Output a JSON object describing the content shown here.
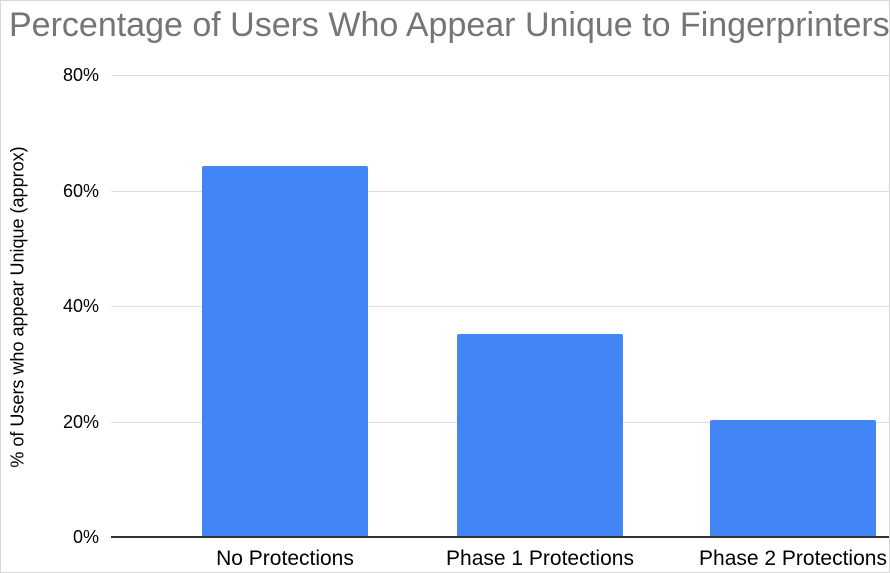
{
  "chart_data": {
    "type": "bar",
    "title": "Percentage of Users Who Appear Unique to Fingerprinters",
    "categories": [
      "No Protections",
      "Phase 1 Protections",
      "Phase 2 Protections"
    ],
    "values": [
      64,
      35,
      20
    ],
    "xlabel": "",
    "ylabel": "% of Users who appear Unique (approx)",
    "ylim": [
      0,
      80
    ],
    "ytick_values": [
      0,
      20,
      40,
      60,
      80
    ],
    "ytick_labels": [
      "0%",
      "20%",
      "40%",
      "60%",
      "80%"
    ],
    "grid": true,
    "legend_position": "none",
    "colors": {
      "bar": "#4285F4",
      "title_text": "#757575",
      "axis_text": "#000000",
      "gridline": "#e0e0e0",
      "axis_line": "#333333",
      "background": "#ffffff",
      "border": "#d7d7d7"
    }
  }
}
